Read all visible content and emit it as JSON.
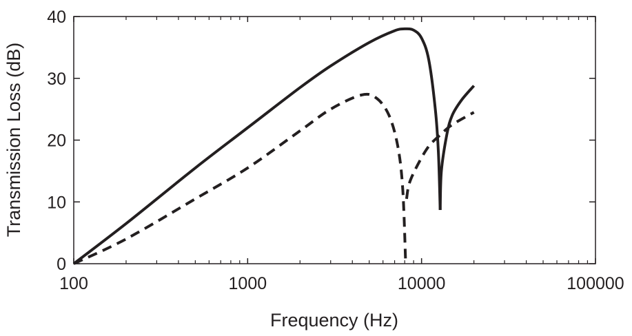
{
  "chart_data": {
    "type": "line",
    "title": "",
    "xlabel": "Frequency (Hz)",
    "ylabel": "Transmission Loss (dB)",
    "xscale": "log",
    "xlim": [
      100,
      100000
    ],
    "ylim": [
      0,
      40
    ],
    "xticks": [
      100,
      1000,
      10000,
      100000
    ],
    "xtick_labels": [
      "100",
      "1000",
      "10000",
      "100000"
    ],
    "yticks": [
      0,
      10,
      20,
      30,
      40
    ],
    "ytick_labels": [
      "0",
      "10",
      "20",
      "30",
      "40"
    ],
    "grid": false,
    "legend": "none",
    "color": "#231f20",
    "series": [
      {
        "style": "solid",
        "segments": [
          [
            [
              100,
              0
            ],
            [
              200,
              6.5
            ],
            [
              500,
              15.5
            ],
            [
              1000,
              22
            ],
            [
              2000,
              28.5
            ],
            [
              3000,
              32
            ],
            [
              5000,
              35.8
            ],
            [
              7000,
              37.7
            ],
            [
              8000,
              38
            ],
            [
              9000,
              37.8
            ],
            [
              10000,
              36.5
            ],
            [
              11000,
              33
            ],
            [
              12000,
              25
            ],
            [
              12500,
              18
            ],
            [
              12800,
              8.7
            ]
          ],
          [
            [
              12800,
              8.7
            ],
            [
              13000,
              15
            ],
            [
              14000,
              21
            ],
            [
              15000,
              24
            ],
            [
              17000,
              26.5
            ],
            [
              20000,
              28.8
            ]
          ]
        ]
      },
      {
        "style": "dashed",
        "segments": [
          [
            [
              100,
              0
            ],
            [
              200,
              4
            ],
            [
              500,
              10.5
            ],
            [
              1000,
              15.5
            ],
            [
              2000,
              21.5
            ],
            [
              3000,
              25
            ],
            [
              4500,
              27.3
            ],
            [
              5500,
              26.8
            ],
            [
              6500,
              24
            ],
            [
              7300,
              19
            ],
            [
              7800,
              12
            ],
            [
              8100,
              0
            ]
          ],
          [
            [
              8200,
              10.5
            ],
            [
              8500,
              13
            ],
            [
              9500,
              16
            ],
            [
              11000,
              19
            ],
            [
              13000,
              21
            ],
            [
              15000,
              22.5
            ],
            [
              20000,
              24.5
            ]
          ]
        ]
      }
    ]
  }
}
